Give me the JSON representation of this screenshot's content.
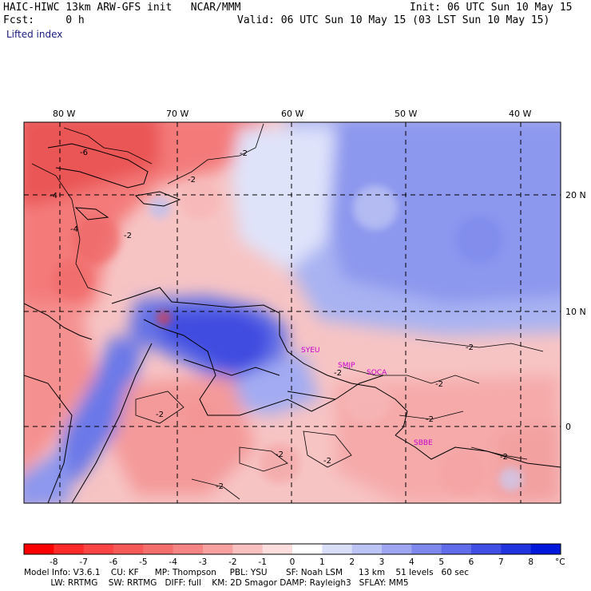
{
  "header": {
    "model_line": "HAIC-HIWC 13km ARW-GFS init   NCAR/MMM",
    "fcst_line": "Fcst:     0 h",
    "init_line": "Init: 06 UTC Sun 10 May 15",
    "valid_line": "Valid: 06 UTC Sun 10 May 15 (03 LST Sun 10 May 15)",
    "field_label": "Lifted index"
  },
  "map": {
    "lon_labels": [
      "80 W",
      "70 W",
      "60 W",
      "50 W",
      "40 W"
    ],
    "lat_labels": [
      "20 N",
      "10 N",
      "0"
    ],
    "contour_labels": [
      "-6",
      "-4",
      "-4",
      "-2",
      "-2",
      "-2",
      "-2",
      "-2",
      "-2",
      "-2",
      "-2",
      "-2",
      "-2",
      "-2",
      "-2"
    ],
    "station_labels": [
      "SYEU",
      "SMJP",
      "SOCA",
      "SBBE"
    ],
    "colors": {
      "warm_strong": "#e63d3d",
      "warm_mid": "#f27878",
      "warm_light": "#f9b4b4",
      "neutral": "#ffffff",
      "cool_light": "#c6ccf7",
      "cool_mid": "#8893ee",
      "cool_strong": "#3f4ce0",
      "station": "#cc00cc"
    }
  },
  "colorbar": {
    "ticks": [
      "-8",
      "-7",
      "-6",
      "-5",
      "-4",
      "-3",
      "-2",
      "-1",
      "0",
      "1",
      "2",
      "3",
      "4",
      "5",
      "6",
      "7",
      "8"
    ],
    "unit": "°C",
    "colors": [
      "#ff0000",
      "#ff2a2a",
      "#fb4444",
      "#f75959",
      "#f56e6e",
      "#f58585",
      "#f7a0a0",
      "#f9c0c0",
      "#fcdede",
      "#ffffff",
      "#dadff9",
      "#bcc3f5",
      "#9ea6f1",
      "#7f89ed",
      "#606ce9",
      "#414fe4",
      "#2233e0",
      "#0018dc"
    ]
  },
  "footer": {
    "line1": "Model Info: V3.6.1    CU: KF      MP: Thompson     PBL: YSU       SF: Noah LSM      13 km    51 levels   60 sec",
    "line2": "          LW: RRTMG    SW: RRTMG   DIFF: full    KM: 2D Smagor DAMP: Rayleigh3   SFLAY: MM5"
  }
}
